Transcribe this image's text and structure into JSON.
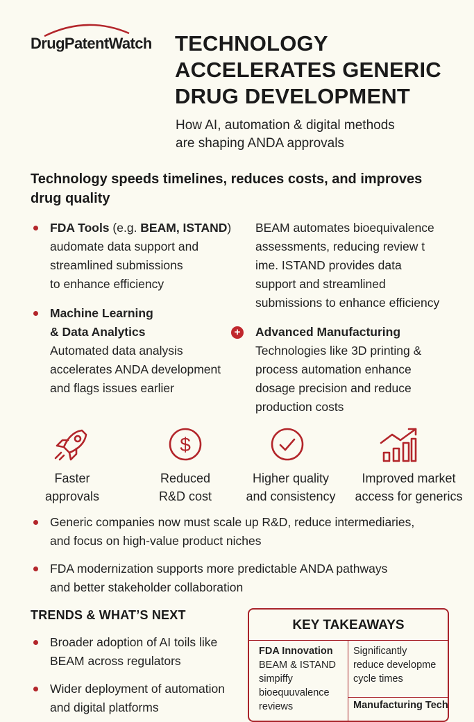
{
  "brand": {
    "logo_text": "DrugPatentWatch",
    "accent": "#b3262b"
  },
  "header": {
    "title_lines": [
      "TECHNOLOGY",
      "ACCELERATES GENERIC",
      "DRUG DEVELOPMENT"
    ],
    "subtitle_lines": [
      "How AI, automation & digital methods",
      "are shaping ANDA approvals"
    ]
  },
  "lead": {
    "lines": [
      "Technology speeds timelines, reduces costs, and improves",
      "drug quality"
    ]
  },
  "features": {
    "fda_tools": {
      "title": "FDA Tools",
      "paren_open": " (e.g. ",
      "examples": "BEAM, ISTAND",
      "paren_close": ")",
      "lines": [
        "audomate data support and",
        "streamlined submissions",
        "to enhance efficiency"
      ]
    },
    "beam_desc": {
      "lines": [
        "BEAM automates bioequivalence",
        "assessments, reducing review t",
        "ime. ISTAND provides data",
        "support and streamlined",
        "submissions to enhance efficiency"
      ]
    },
    "ml": {
      "title_lines": [
        "Machine Learning",
        "& Data Analytics"
      ],
      "lines": [
        "Automated data analysis",
        "accelerates ANDA development",
        "and flags issues earlier"
      ]
    },
    "manufacturing": {
      "icon": "plus-circle-icon",
      "title": "Advanced Manufacturing",
      "lines": [
        "Technologies like 3D printing &",
        "process automation enhance",
        "dosage precision and reduce",
        "production costs"
      ]
    }
  },
  "benefits": [
    {
      "icon": "rocket-icon",
      "lines": [
        "Faster",
        "approvals"
      ]
    },
    {
      "icon": "dollar-coin-icon",
      "lines": [
        "Reduced",
        "R&D cost"
      ]
    },
    {
      "icon": "checkmark-circle-icon",
      "lines": [
        "Higher quality",
        "and consistency"
      ]
    },
    {
      "icon": "rising-bar-chart-icon",
      "lines": [
        "Improved market",
        "access for generics"
      ]
    }
  ],
  "points": [
    {
      "lines": [
        "Generic companies now must scale up R&D, reduce intermediaries,",
        "and focus on high-value product niches"
      ]
    },
    {
      "lines": [
        "FDA modernization supports more predictable ANDA pathways",
        "and better stakeholder collaboration"
      ]
    }
  ],
  "trends": {
    "heading": "TRENDS & WHAT’S NEXT",
    "items": [
      {
        "lines": [
          "Broader adoption of AI toils like",
          "BEAM across regulators"
        ]
      },
      {
        "lines": [
          "Wider deployment of automation",
          "and digital platforms"
        ]
      }
    ]
  },
  "takeaways": {
    "title": "KEY TAKEAWAYS",
    "left": {
      "heading": "FDA Innovation",
      "lines": [
        "BEAM & ISTAND",
        "simpiffy",
        "bioequuvalence",
        "reviews"
      ]
    },
    "right_top": {
      "lines": [
        "Significantly",
        "reduce developme",
        "cycle times"
      ]
    },
    "right_bottom": {
      "heading": "Manufacturing Tech"
    }
  }
}
